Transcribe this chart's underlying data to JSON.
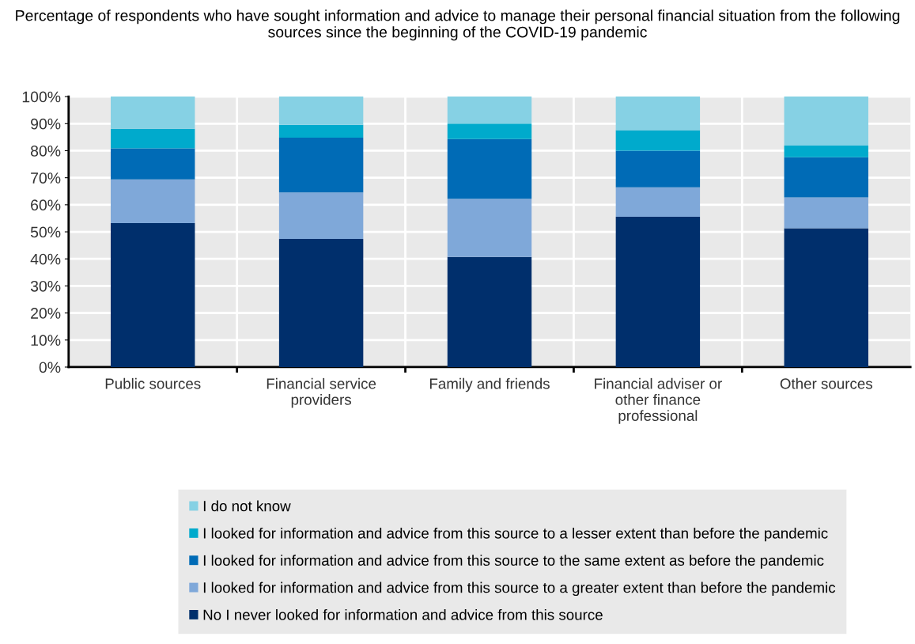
{
  "chart_data": {
    "type": "bar",
    "stacked": true,
    "title": "Percentage of respondents who have sought information and advice to manage their personal financial situation from the following sources since the beginning of the COVID-19 pandemic",
    "categories": [
      "Public sources",
      "Financial service providers",
      "Family and friends",
      "Financial adviser or other finance professional",
      "Other sources"
    ],
    "series": [
      {
        "name": "No I never looked for information and advice from this source",
        "color": "#002f6c",
        "values": [
          53.2,
          47.4,
          40.7,
          55.6,
          51.3
        ]
      },
      {
        "name": "I looked for information and advice from this source to a greater extent than before the pandemic",
        "color": "#7fa8d9",
        "values": [
          16.2,
          17.2,
          21.5,
          10.9,
          11.4
        ]
      },
      {
        "name": "I looked for information and advice from this source to the same extent as before the pandemic",
        "color": "#006bb6",
        "values": [
          11.5,
          20.2,
          22.1,
          13.5,
          14.9
        ]
      },
      {
        "name": "I looked for information and advice from this source to a lesser extent than before the pandemic",
        "color": "#00aacc",
        "values": [
          7.2,
          4.8,
          5.7,
          7.6,
          4.3
        ]
      },
      {
        "name": "I do not know",
        "color": "#86d1e4",
        "values": [
          11.9,
          10.4,
          10.0,
          12.4,
          18.1
        ]
      }
    ],
    "ylim": [
      0,
      100
    ],
    "yticks": [
      {
        "value": 0,
        "label": "0%"
      },
      {
        "value": 10,
        "label": "10%"
      },
      {
        "value": 20,
        "label": "20%"
      },
      {
        "value": 30,
        "label": "30%"
      },
      {
        "value": 40,
        "label": "40%"
      },
      {
        "value": 50,
        "label": "50%"
      },
      {
        "value": 60,
        "label": "60%"
      },
      {
        "value": 70,
        "label": "70%"
      },
      {
        "value": 80,
        "label": "80%"
      },
      {
        "value": 90,
        "label": "90%"
      },
      {
        "value": 100,
        "label": "100%"
      }
    ],
    "grid": true,
    "legend": "bottom"
  }
}
